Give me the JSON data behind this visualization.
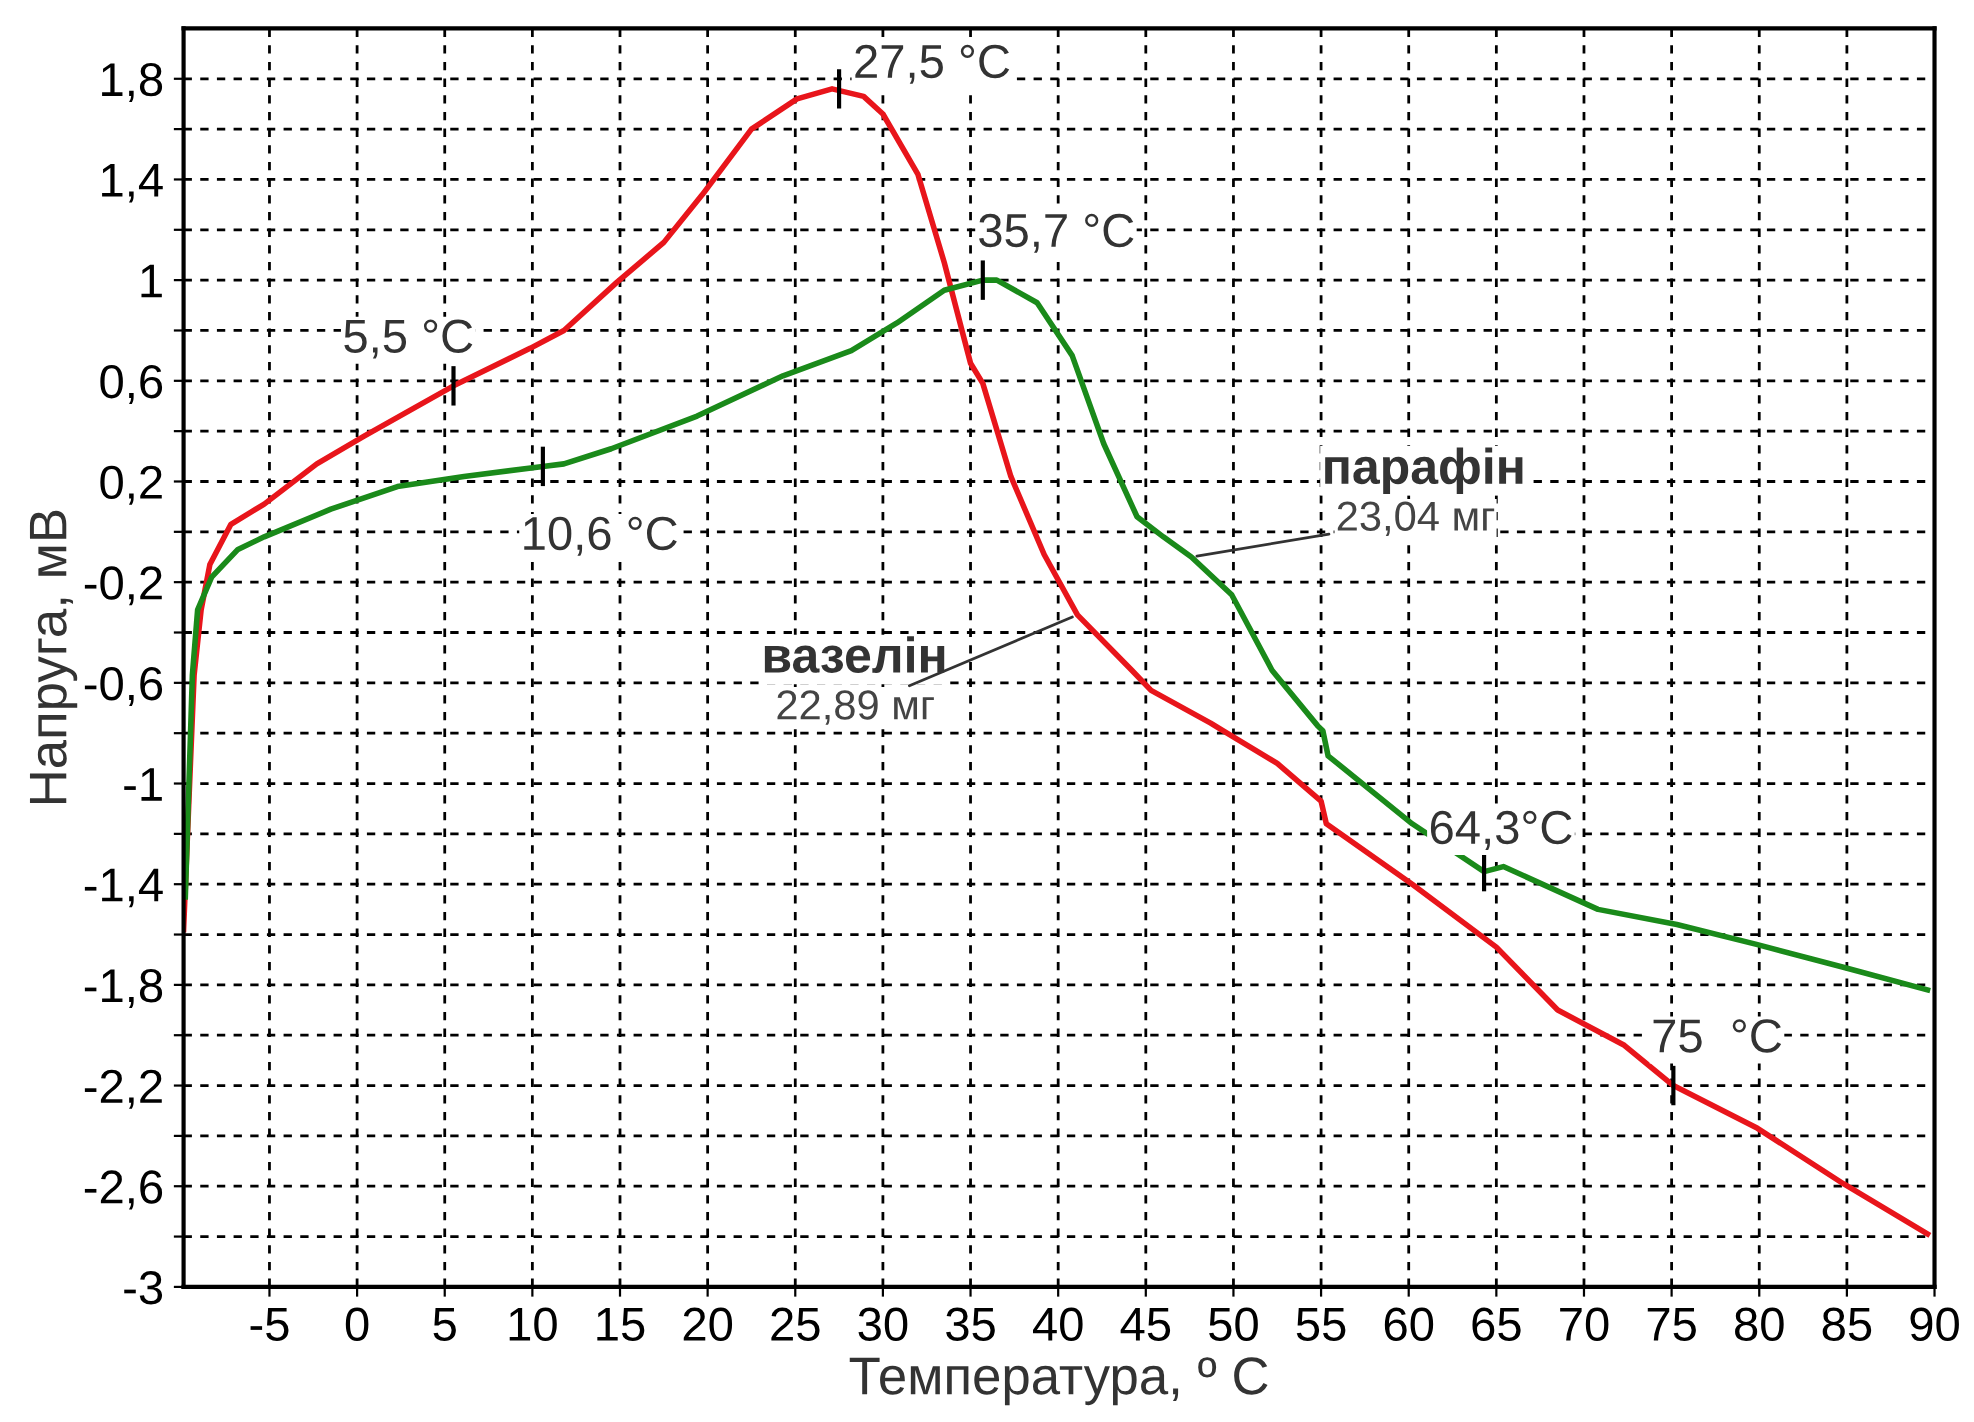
{
  "chart_data": {
    "type": "line",
    "xlabel": "Температура, º C",
    "ylabel": "Напруга, мВ",
    "xlim": [
      -9.9,
      90
    ],
    "ylim": [
      -3,
      2.0
    ],
    "xticks": [
      -5,
      0,
      5,
      10,
      15,
      20,
      25,
      30,
      35,
      40,
      45,
      50,
      55,
      60,
      65,
      70,
      75,
      80,
      85,
      90
    ],
    "yticks": [
      {
        "value": -3,
        "label": "-3"
      },
      {
        "value": -2.8,
        "label": null
      },
      {
        "value": -2.6,
        "label": "-2,6"
      },
      {
        "value": -2.4,
        "label": null
      },
      {
        "value": -2.2,
        "label": "-2,2"
      },
      {
        "value": -2.0,
        "label": null
      },
      {
        "value": -1.8,
        "label": "-1,8"
      },
      {
        "value": -1.6,
        "label": null
      },
      {
        "value": -1.4,
        "label": "-1,4"
      },
      {
        "value": -1.2,
        "label": null
      },
      {
        "value": -1,
        "label": "-1"
      },
      {
        "value": -0.8,
        "label": null
      },
      {
        "value": -0.6,
        "label": "-0,6"
      },
      {
        "value": -0.4,
        "label": null
      },
      {
        "value": -0.2,
        "label": "-0,2"
      },
      {
        "value": 0,
        "label": null
      },
      {
        "value": 0.2,
        "label": "0,2"
      },
      {
        "value": 0.4,
        "label": null
      },
      {
        "value": 0.6,
        "label": "0,6"
      },
      {
        "value": 0.8,
        "label": null
      },
      {
        "value": 1,
        "label": "1"
      },
      {
        "value": 1.2,
        "label": null
      },
      {
        "value": 1.4,
        "label": "1,4"
      },
      {
        "value": 1.6,
        "label": null
      },
      {
        "value": 1.8,
        "label": "1,8"
      }
    ],
    "grid": true,
    "line_style": "solid",
    "marker": "none",
    "series": [
      {
        "name": "вазелін",
        "color": "#e8151b",
        "x": [
          -9.9,
          -9.3,
          -8.9,
          -8.4,
          -7.2,
          -5.3,
          -2.3,
          0.4,
          5.5,
          9.9,
          11.8,
          14.8,
          17.5,
          19.7,
          22.5,
          25.1,
          27.1,
          28.9,
          30.0,
          32.0,
          33.5,
          35.0,
          35.7,
          37.3,
          39.2,
          41.1,
          44.2,
          45.3,
          48.7,
          49.4,
          52.5,
          55.0,
          55.3,
          60.2,
          65.0,
          68.5,
          72.3,
          75.1,
          79.9,
          84.8,
          89.6
        ],
        "values": [
          -1.58,
          -0.57,
          -0.31,
          -0.13,
          0.03,
          0.11,
          0.27,
          0.38,
          0.58,
          0.73,
          0.8,
          0.99,
          1.15,
          1.34,
          1.6,
          1.72,
          1.76,
          1.73,
          1.66,
          1.42,
          1.07,
          0.67,
          0.59,
          0.22,
          -0.09,
          -0.33,
          -0.55,
          -0.63,
          -0.76,
          -0.79,
          -0.92,
          -1.07,
          -1.16,
          -1.4,
          -1.65,
          -1.9,
          -2.04,
          -2.2,
          -2.37,
          -2.59,
          -2.79
        ]
      },
      {
        "name": "парафін",
        "color": "#1a8a1a",
        "x": [
          -9.8,
          -9.4,
          -9.1,
          -8.3,
          -6.8,
          -5.3,
          -1.5,
          2.3,
          6.1,
          10.6,
          11.8,
          14.5,
          19.4,
          24.3,
          28.2,
          30.8,
          33.5,
          35.7,
          36.5,
          38.8,
          40.8,
          42.6,
          44.5,
          46.0,
          47.6,
          49.9,
          52.2,
          54.8,
          55.1,
          55.4,
          60.2,
          64.3,
          65.4,
          70.8,
          75.3,
          79.9,
          84.8,
          89.6
        ],
        "values": [
          -1.45,
          -0.57,
          -0.31,
          -0.18,
          -0.07,
          -0.02,
          0.09,
          0.18,
          0.22,
          0.26,
          0.27,
          0.33,
          0.46,
          0.62,
          0.72,
          0.83,
          0.96,
          1.0,
          1.0,
          0.91,
          0.7,
          0.35,
          0.06,
          -0.02,
          -0.1,
          -0.25,
          -0.55,
          -0.77,
          -0.79,
          -0.89,
          -1.16,
          -1.35,
          -1.33,
          -1.5,
          -1.56,
          -1.64,
          -1.73,
          -1.82
        ]
      }
    ],
    "annotations": [
      {
        "text": "27,5 °C",
        "x": 27.5,
        "y": 1.76
      },
      {
        "text": "35,7 °C",
        "x": 35.7,
        "y": 1.0
      },
      {
        "text": "5,5 °C",
        "x": 5.5,
        "y": 0.58
      },
      {
        "text": "10,6 °C",
        "x": 10.6,
        "y": 0.26
      },
      {
        "text": "64,3°C",
        "x": 64.3,
        "y": -1.35
      },
      {
        "text": "75  °C",
        "x": 75.1,
        "y": -2.2
      },
      {
        "text": "22,89 мг",
        "x": 41.1,
        "y": -0.33
      },
      {
        "text": "23,04 мг",
        "x": 47.6,
        "y": -0.1
      }
    ]
  }
}
